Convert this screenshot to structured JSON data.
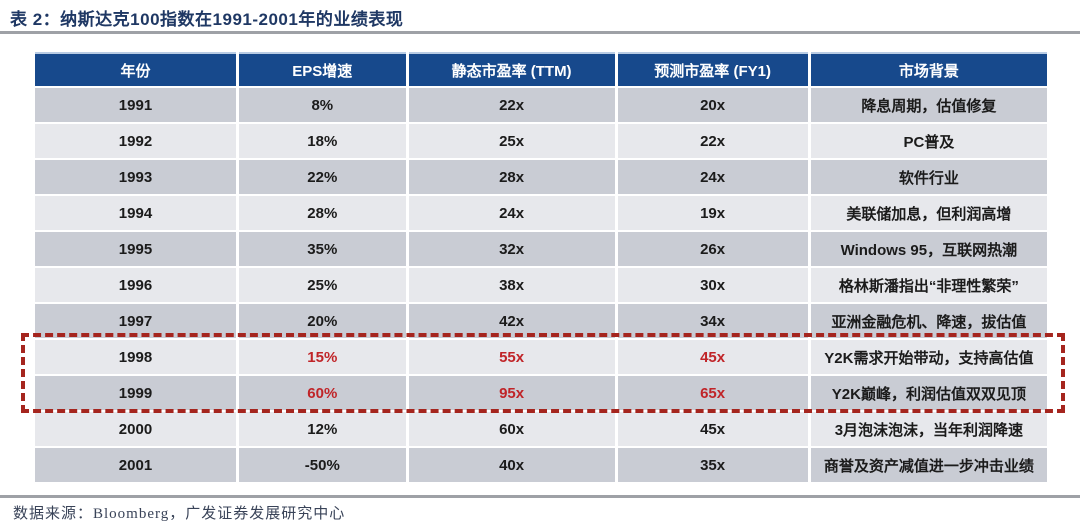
{
  "chart_data": {
    "type": "table",
    "title": "表 2：纳斯达克100指数在1991-2001年的业绩表现",
    "columns": [
      "年份",
      "EPS增速",
      "静态市盈率 (TTM)",
      "预测市盈率 (FY1)",
      "市场背景"
    ],
    "rows": [
      {
        "cells": [
          "1991",
          "8%",
          "22x",
          "20x",
          "降息周期，估值修复"
        ],
        "highlight": false
      },
      {
        "cells": [
          "1992",
          "18%",
          "25x",
          "22x",
          "PC普及"
        ],
        "highlight": false
      },
      {
        "cells": [
          "1993",
          "22%",
          "28x",
          "24x",
          "软件行业"
        ],
        "highlight": false
      },
      {
        "cells": [
          "1994",
          "28%",
          "24x",
          "19x",
          "美联储加息，但利润高增"
        ],
        "highlight": false
      },
      {
        "cells": [
          "1995",
          "35%",
          "32x",
          "26x",
          "Windows 95，互联网热潮"
        ],
        "highlight": false
      },
      {
        "cells": [
          "1996",
          "25%",
          "38x",
          "30x",
          "格林斯潘指出“非理性繁荣”"
        ],
        "highlight": false
      },
      {
        "cells": [
          "1997",
          "20%",
          "42x",
          "34x",
          "亚洲金融危机、降速，拔估值"
        ],
        "highlight": false
      },
      {
        "cells": [
          "1998",
          "15%",
          "55x",
          "45x",
          "Y2K需求开始带动，支持高估值"
        ],
        "highlight": true
      },
      {
        "cells": [
          "1999",
          "60%",
          "95x",
          "65x",
          "Y2K巅峰，利润估值双双见顶"
        ],
        "highlight": true
      },
      {
        "cells": [
          "2000",
          "12%",
          "60x",
          "45x",
          "3月泡沫泡沫，当年利润降速"
        ],
        "highlight": false
      },
      {
        "cells": [
          "2001",
          "-50%",
          "40x",
          "35x",
          "商誉及资产减值进一步冲击业绩"
        ],
        "highlight": false
      }
    ],
    "highlighted_years": [
      "1998",
      "1999"
    ],
    "source": "数据来源：Bloomberg，广发证券发展研究中心",
    "layout": {
      "legend": "none",
      "grid": "striped-rows",
      "header_position": "top"
    }
  },
  "colors": {
    "header_bg": "#17498C",
    "header_text": "#FFFFFF",
    "row_dark": "#C9CCD4",
    "row_light": "#E7E8EC",
    "body_text": "#1B1B1B",
    "highlight_text_red": "#C02428",
    "highlight_border_red": "#A5251E",
    "title_navy": "#1F3864",
    "separator_gray": "#9EA1A6"
  }
}
